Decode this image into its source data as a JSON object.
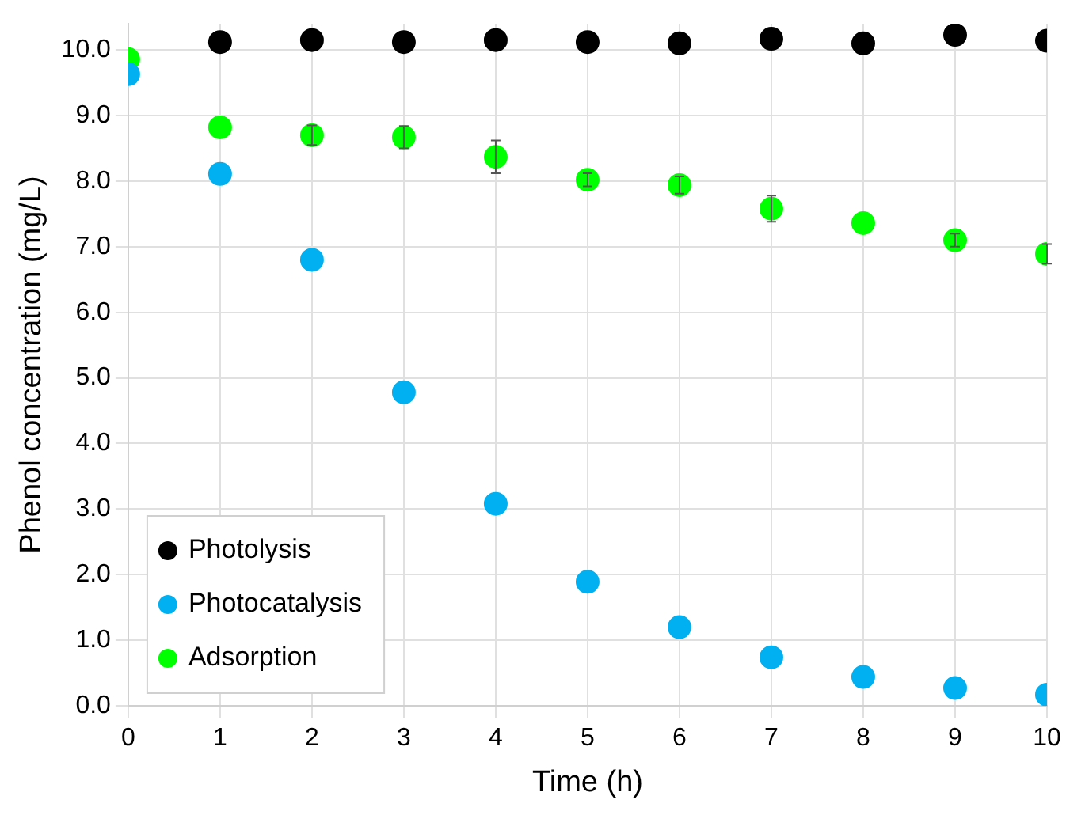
{
  "chart_data": {
    "type": "scatter",
    "xlabel": "Time (h)",
    "ylabel": "Phenol concentration (mg/L)",
    "x": [
      0,
      1,
      2,
      3,
      4,
      5,
      6,
      7,
      8,
      9,
      10
    ],
    "series": [
      {
        "name": "Photolysis",
        "color": "#000000",
        "values": [
          null,
          10.12,
          10.15,
          10.12,
          10.15,
          10.12,
          10.1,
          10.17,
          10.1,
          10.23,
          10.14
        ]
      },
      {
        "name": "Photocatalysis",
        "color": "#00b0f0",
        "values": [
          9.63,
          8.11,
          6.8,
          4.78,
          3.08,
          1.89,
          1.2,
          0.74,
          0.44,
          0.27,
          0.17
        ]
      },
      {
        "name": "Adsorption",
        "color": "#00ff00",
        "values": [
          9.86,
          8.82,
          8.7,
          8.67,
          8.37,
          8.02,
          7.94,
          7.58,
          7.36,
          7.1,
          6.89
        ],
        "errors": [
          null,
          null,
          0.15,
          0.17,
          0.25,
          0.1,
          0.13,
          0.2,
          null,
          0.1,
          0.15
        ]
      }
    ],
    "xlim": [
      0,
      10
    ],
    "xticks": [
      0,
      1,
      2,
      3,
      4,
      5,
      6,
      7,
      8,
      9,
      10
    ],
    "ylim": [
      0,
      10.4
    ],
    "yticks": [
      {
        "value": 0,
        "label": "0.0"
      },
      {
        "value": 1,
        "label": "1.0"
      },
      {
        "value": 2,
        "label": "2.0"
      },
      {
        "value": 3,
        "label": "3.0"
      },
      {
        "value": 4,
        "label": "4.0"
      },
      {
        "value": 5,
        "label": "5.0"
      },
      {
        "value": 6,
        "label": "6.0"
      },
      {
        "value": 7,
        "label": "7.0"
      },
      {
        "value": 8,
        "label": "8.0"
      },
      {
        "value": 9,
        "label": "9.0"
      },
      {
        "value": 10,
        "label": "10.0"
      }
    ],
    "grid": true,
    "legend": "bottom left",
    "marker": "circle"
  }
}
